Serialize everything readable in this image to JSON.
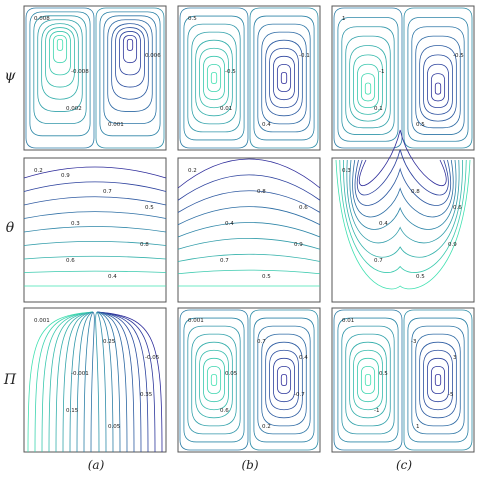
{
  "figure": {
    "row_labels": [
      "ψ",
      "θ",
      "Π"
    ],
    "col_labels": [
      "(a)",
      "(b)",
      "(c)"
    ],
    "colors": {
      "low": "#2d2b9a",
      "mid": "#2e86a8",
      "high": "#3fe0b0",
      "frame": "#555555"
    }
  },
  "panels": [
    {
      "id": "psi-a",
      "row": 0,
      "col": 0,
      "field": "psi",
      "labels": [
        "0.008",
        "-0.008",
        "0.001",
        "0.006",
        "0.002"
      ]
    },
    {
      "id": "psi-b",
      "row": 0,
      "col": 1,
      "field": "psi",
      "labels": [
        "0.5",
        "-0.5",
        "0.4",
        "-0.1",
        "0.01"
      ]
    },
    {
      "id": "psi-c",
      "row": 0,
      "col": 2,
      "field": "psi",
      "labels": [
        "1",
        "-1",
        "0.5",
        "-0.5",
        "0.1"
      ]
    },
    {
      "id": "theta-a",
      "row": 1,
      "col": 0,
      "field": "theta",
      "labels": [
        "0.2",
        "0.3",
        "0.4",
        "0.5",
        "0.6",
        "0.7",
        "0.8",
        "0.9"
      ]
    },
    {
      "id": "theta-b",
      "row": 1,
      "col": 1,
      "field": "theta",
      "labels": [
        "0.2",
        "0.4",
        "0.5",
        "0.6",
        "0.7",
        "0.8",
        "0.9"
      ]
    },
    {
      "id": "theta-c",
      "row": 1,
      "col": 2,
      "field": "theta",
      "labels": [
        "0.3",
        "0.4",
        "0.5",
        "0.6",
        "0.7",
        "0.8",
        "0.9"
      ]
    },
    {
      "id": "pi-a",
      "row": 2,
      "col": 0,
      "field": "pi",
      "labels": [
        "0.001",
        "-0.001",
        "0.05",
        "-0.05",
        "0.15",
        "0.25",
        "0.35"
      ]
    },
    {
      "id": "pi-b",
      "row": 2,
      "col": 1,
      "field": "pi",
      "labels": [
        "0.001",
        "0.05",
        "0.2",
        "0.4",
        "0.6",
        "0.7",
        "-0.7"
      ]
    },
    {
      "id": "pi-c",
      "row": 2,
      "col": 2,
      "field": "pi",
      "labels": [
        "0.01",
        "0.5",
        "1",
        "3",
        "-1",
        "-3",
        "-5"
      ]
    }
  ]
}
